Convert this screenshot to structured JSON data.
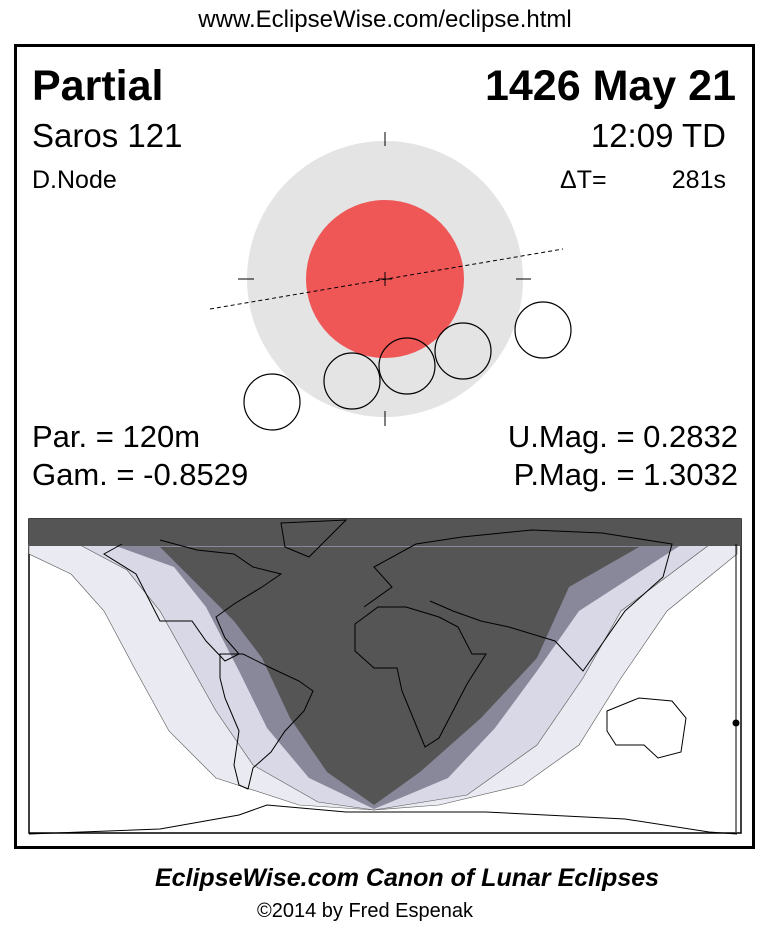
{
  "header": {
    "url": "www.EclipseWise.com/eclipse.html"
  },
  "eclipse": {
    "type": "Partial",
    "date": "1426 May 21",
    "saros": "Saros 121",
    "time": "12:09 TD",
    "node": "D.Node",
    "delta_t_label": "ΔT=",
    "delta_t_value": "281s",
    "duration": "Par. = 120m",
    "gamma": "Gam. = -0.8529",
    "umbral_mag": "U.Mag. = 0.2832",
    "penumbral_mag": "P.Mag. = 1.3032"
  },
  "colors": {
    "umbra": "#ef5757",
    "penumbra": "#e4e4e4",
    "night": "#555555",
    "band_dark": "#88889a",
    "band_mid": "#d8d8e6",
    "band_light": "#eaeaf2"
  },
  "footer": {
    "title": "EclipseWise.com Canon of Lunar Eclipses",
    "credit": "©2014 by Fred Espenak"
  }
}
